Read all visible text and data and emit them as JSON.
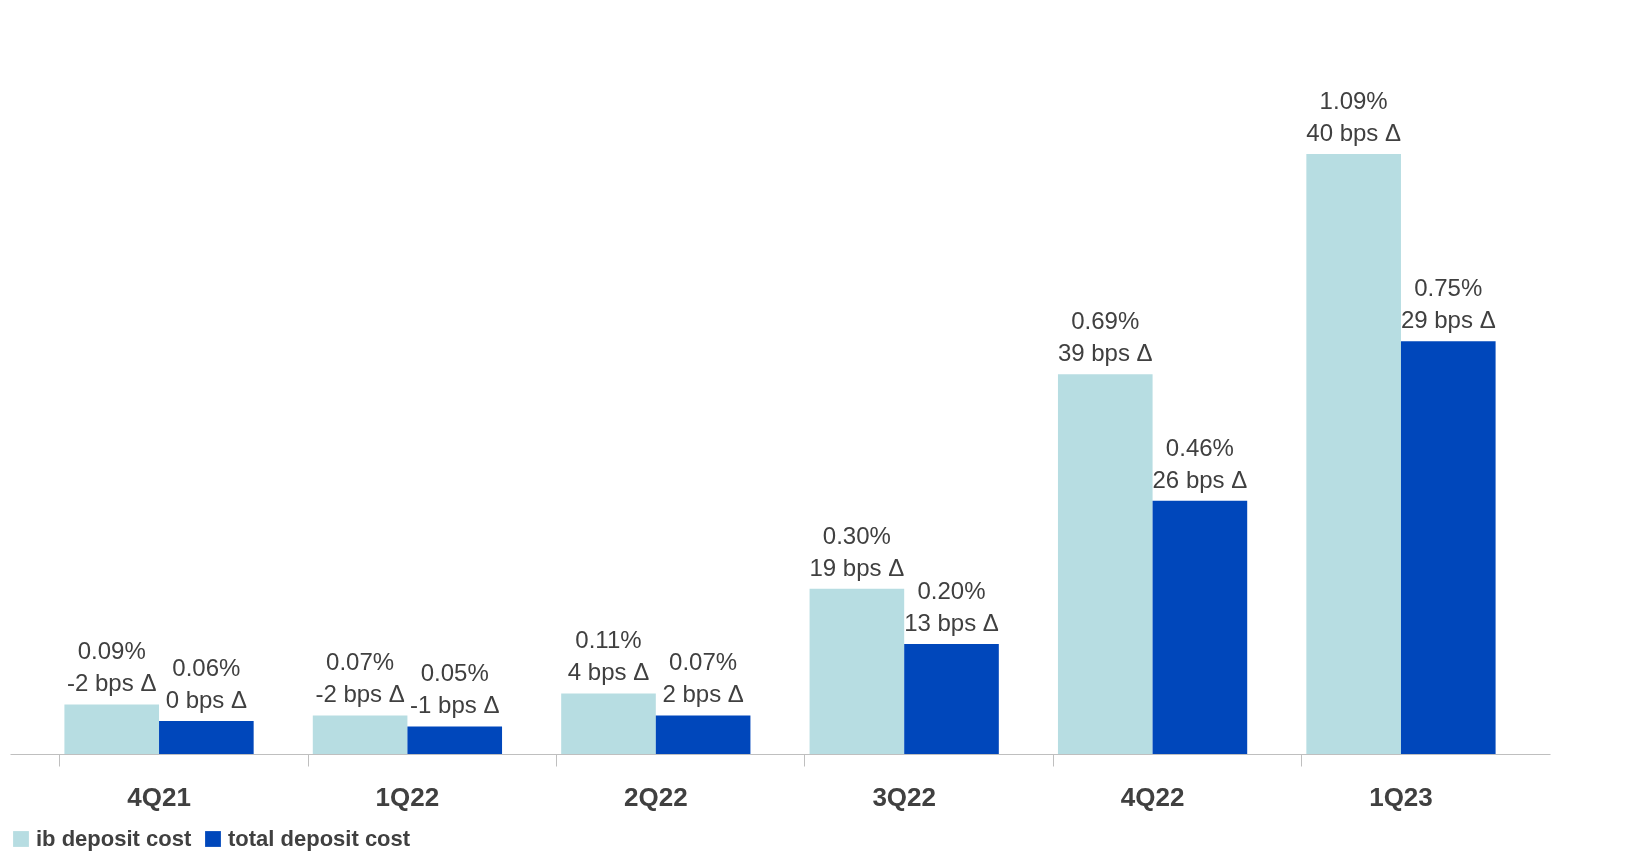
{
  "chart_data": {
    "type": "bar",
    "categories": [
      "4Q21",
      "1Q22",
      "2Q22",
      "3Q22",
      "4Q22",
      "1Q23"
    ],
    "series": [
      {
        "name": "ib deposit cost",
        "color": "#b7dde2",
        "values": [
          0.09,
          0.07,
          0.11,
          0.3,
          0.69,
          1.09
        ],
        "value_labels": [
          "0.09%\n-2 bps Δ",
          "0.07%\n-2 bps Δ",
          "0.11%\n4 bps Δ",
          "0.30%\n19 bps Δ",
          "0.69%\n39 bps Δ",
          "1.09%\n40 bps Δ"
        ]
      },
      {
        "name": "total deposit cost",
        "color": "#0047bb",
        "values": [
          0.06,
          0.05,
          0.07,
          0.2,
          0.46,
          0.75
        ],
        "value_labels": [
          "0.06%\n0 bps Δ",
          "0.05%\n-1 bps Δ",
          "0.07%\n2 bps Δ",
          "0.20%\n13 bps Δ",
          "0.46%\n26 bps Δ",
          "0.75%\n29 bps Δ"
        ]
      }
    ],
    "legend": "bottom",
    "grid": false
  }
}
